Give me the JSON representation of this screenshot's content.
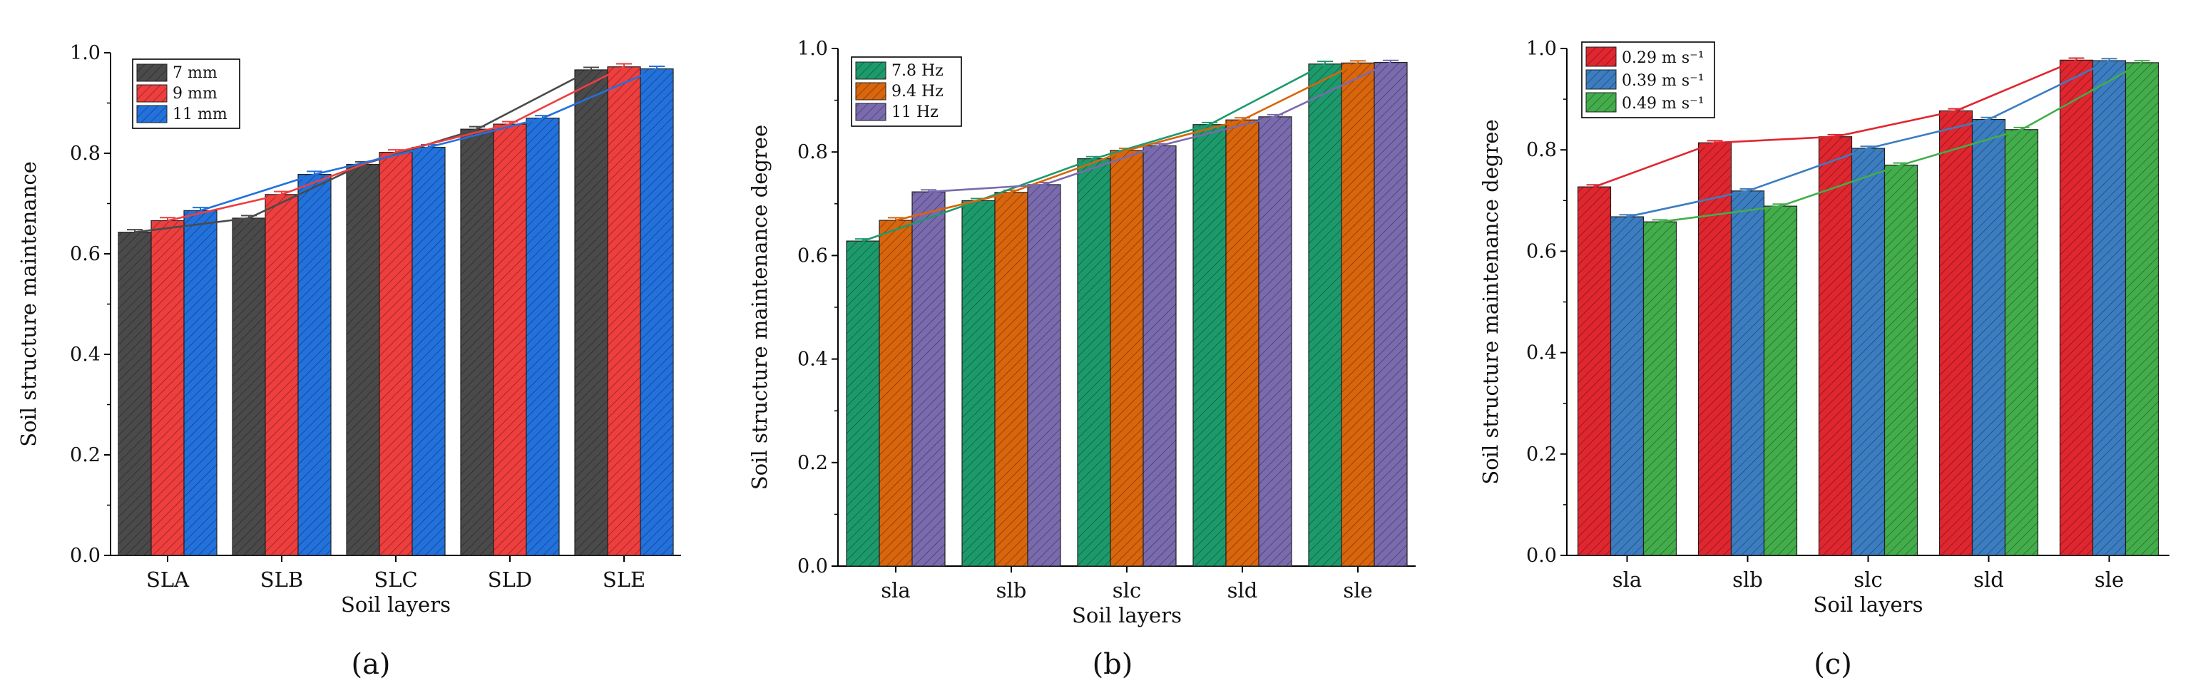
{
  "figure": {
    "panel_labels": [
      "(a)",
      "(b)",
      "(c)"
    ]
  },
  "chart_data": [
    {
      "type": "bar",
      "panel": "(a)",
      "title": "",
      "xlabel": "Soil layers",
      "ylabel": "Soil structure maintenance",
      "ylim": [
        0,
        1.0
      ],
      "yticks": [
        "0.0",
        "0.2",
        "0.4",
        "0.6",
        "0.8",
        "1.0"
      ],
      "categories": [
        "SLA",
        "SLB",
        "SLC",
        "SLD",
        "SLE"
      ],
      "legend_position": "top-left",
      "series": [
        {
          "name": "7 mm",
          "color": "#4a4a4a",
          "values": [
            0.643,
            0.671,
            0.778,
            0.848,
            0.966
          ],
          "errors": [
            0.005,
            0.005,
            0.005,
            0.005,
            0.005
          ]
        },
        {
          "name": "9 mm",
          "color": "#ee3e3e",
          "values": [
            0.666,
            0.718,
            0.802,
            0.858,
            0.972
          ],
          "errors": [
            0.006,
            0.006,
            0.005,
            0.005,
            0.006
          ]
        },
        {
          "name": "11 mm",
          "color": "#2271dc",
          "values": [
            0.686,
            0.758,
            0.812,
            0.87,
            0.968
          ],
          "errors": [
            0.006,
            0.006,
            0.005,
            0.005,
            0.005
          ]
        }
      ]
    },
    {
      "type": "bar",
      "panel": "(b)",
      "title": "",
      "xlabel": "Soil layers",
      "ylabel": "Soil structure maintenance degree",
      "ylim": [
        0,
        1.0
      ],
      "yticks": [
        "0.0",
        "0.2",
        "0.4",
        "0.6",
        "0.8",
        "1.0"
      ],
      "categories": [
        "sla",
        "slb",
        "slc",
        "sld",
        "sle"
      ],
      "legend_position": "top-left",
      "series": [
        {
          "name": "7.8 Hz",
          "color": "#1d9a6c",
          "values": [
            0.628,
            0.706,
            0.787,
            0.853,
            0.97
          ],
          "errors": [
            0.004,
            0.004,
            0.004,
            0.004,
            0.005
          ]
        },
        {
          "name": "9.4 Hz",
          "color": "#d9650c",
          "values": [
            0.668,
            0.722,
            0.803,
            0.862,
            0.972
          ],
          "errors": [
            0.005,
            0.004,
            0.004,
            0.004,
            0.004
          ]
        },
        {
          "name": "11 Hz",
          "color": "#7a6aae",
          "values": [
            0.723,
            0.737,
            0.812,
            0.868,
            0.973
          ],
          "errors": [
            0.004,
            0.004,
            0.004,
            0.004,
            0.004
          ]
        }
      ]
    },
    {
      "type": "bar",
      "panel": "(c)",
      "title": "",
      "xlabel": "Soil layers",
      "ylabel": "Soil structure maintenance degree",
      "ylim": [
        0,
        1.0
      ],
      "yticks": [
        "0.0",
        "0.2",
        "0.4",
        "0.6",
        "0.8",
        "1.0"
      ],
      "categories": [
        "sla",
        "slb",
        "slc",
        "sld",
        "sle"
      ],
      "legend_position": "top-left",
      "series": [
        {
          "name": "0.29 m s⁻¹",
          "color": "#e0262f",
          "values": [
            0.727,
            0.814,
            0.826,
            0.877,
            0.977
          ],
          "errors": [
            0.004,
            0.004,
            0.004,
            0.004,
            0.004
          ]
        },
        {
          "name": "0.39 m s⁻¹",
          "color": "#3b7dc0",
          "values": [
            0.668,
            0.719,
            0.803,
            0.86,
            0.976
          ],
          "errors": [
            0.004,
            0.004,
            0.004,
            0.004,
            0.004
          ]
        },
        {
          "name": "0.49 m s⁻¹",
          "color": "#43ad4b",
          "values": [
            0.658,
            0.689,
            0.77,
            0.84,
            0.972
          ],
          "errors": [
            0.004,
            0.004,
            0.004,
            0.004,
            0.004
          ]
        }
      ]
    }
  ]
}
